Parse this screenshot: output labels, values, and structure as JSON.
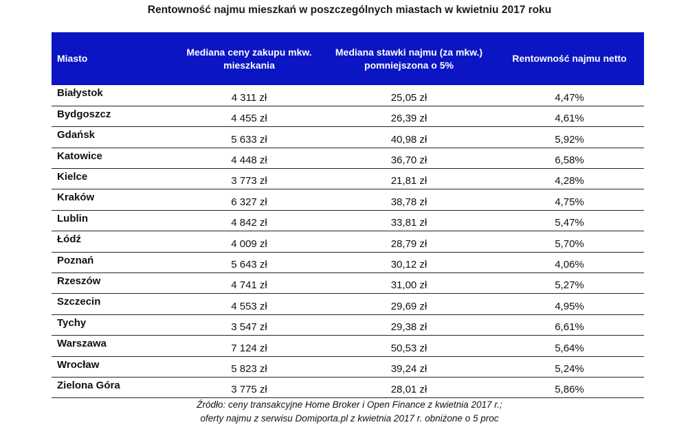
{
  "title": "Rentowność najmu mieszkań w poszczególnych miastach w kwietniu 2017 roku",
  "table": {
    "headers": [
      "Miasto",
      "Mediana ceny zakupu mkw. mieszkania",
      "Mediana stawki najmu (za mkw.) pomniejszona o 5%",
      "Rentowność najmu netto"
    ],
    "rows": [
      [
        "Białystok",
        "4 311 zł",
        "25,05 zł",
        "4,47%"
      ],
      [
        "Bydgoszcz",
        "4 455 zł",
        "26,39 zł",
        "4,61%"
      ],
      [
        "Gdańsk",
        "5 633 zł",
        "40,98 zł",
        "5,92%"
      ],
      [
        "Katowice",
        "4 448 zł",
        "36,70 zł",
        "6,58%"
      ],
      [
        "Kielce",
        "3 773 zł",
        "21,81 zł",
        "4,28%"
      ],
      [
        "Kraków",
        "6 327 zł",
        "38,78 zł",
        "4,75%"
      ],
      [
        "Lublin",
        "4 842 zł",
        "33,81 zł",
        "5,47%"
      ],
      [
        "Łódź",
        "4 009 zł",
        "28,79 zł",
        "5,70%"
      ],
      [
        "Poznań",
        "5 643 zł",
        "30,12 zł",
        "4,06%"
      ],
      [
        "Rzeszów",
        "4 741 zł",
        "31,00 zł",
        "5,27%"
      ],
      [
        "Szczecin",
        "4 553 zł",
        "29,69 zł",
        "4,95%"
      ],
      [
        "Tychy",
        "3 547 zł",
        "29,38 zł",
        "6,61%"
      ],
      [
        "Warszawa",
        "7 124 zł",
        "50,53 zł",
        "5,64%"
      ],
      [
        "Wrocław",
        "5 823 zł",
        "39,24 zł",
        "5,24%"
      ],
      [
        "Zielona Góra",
        "3 775 zł",
        "28,01 zł",
        "5,86%"
      ]
    ]
  },
  "source": {
    "line1": "Źródło: ceny transakcyjne Home Broker i Open Finance z kwietnia 2017 r.;",
    "line2": "oferty najmu z serwisu Domiporta.pl z kwietnia 2017 r. obniżone o 5 proc"
  },
  "colors": {
    "header_bg": "#0b15c4",
    "header_text": "#ffffff"
  }
}
